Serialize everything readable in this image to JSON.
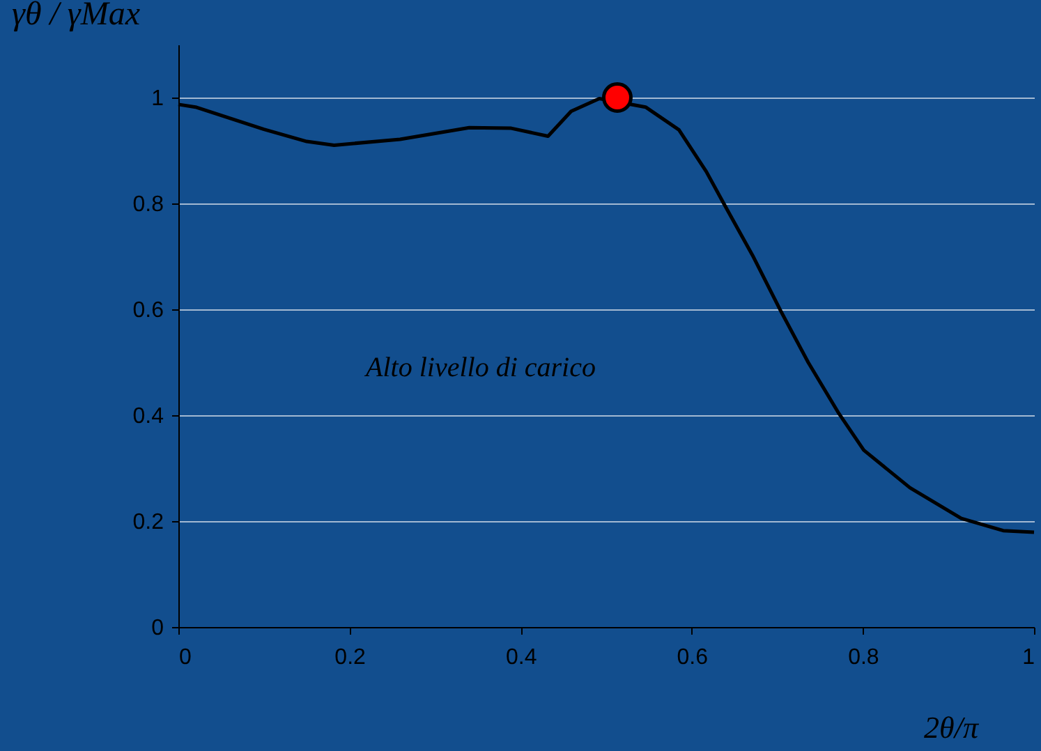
{
  "chart_data": {
    "type": "line",
    "xlabel": "2θ/π",
    "ylabel": "γθ / γMax",
    "annotations": [
      "Alto livello di carico"
    ],
    "xlim": [
      0,
      1
    ],
    "xticks": [
      0,
      0.2,
      0.4,
      0.6,
      0.8,
      1
    ],
    "ylim": [
      0,
      1.1
    ],
    "yticks": [
      0,
      0.2,
      0.4,
      0.6,
      0.8,
      1
    ],
    "grid": "y",
    "series": [
      {
        "color": "#000000",
        "marker": "none",
        "line_style": "solid",
        "x": [
          0,
          0.02,
          0.1,
          0.15,
          0.182,
          0.259,
          0.34,
          0.389,
          0.432,
          0.459,
          0.492,
          0.546,
          0.585,
          0.617,
          0.638,
          0.671,
          0.704,
          0.736,
          0.772,
          0.801,
          0.855,
          0.915,
          0.964,
          1
        ],
        "values": [
          0.987,
          0.982,
          0.94,
          0.917,
          0.91,
          0.921,
          0.943,
          0.942,
          0.927,
          0.974,
          0.998,
          0.982,
          0.939,
          0.86,
          0.798,
          0.702,
          0.597,
          0.5,
          0.403,
          0.334,
          0.263,
          0.205,
          0.182,
          0.179
        ]
      },
      {
        "type": "scatter",
        "color": "#ff0000",
        "marker": "circle",
        "x": [
          0.513
        ],
        "values": [
          1.0
        ]
      }
    ]
  }
}
